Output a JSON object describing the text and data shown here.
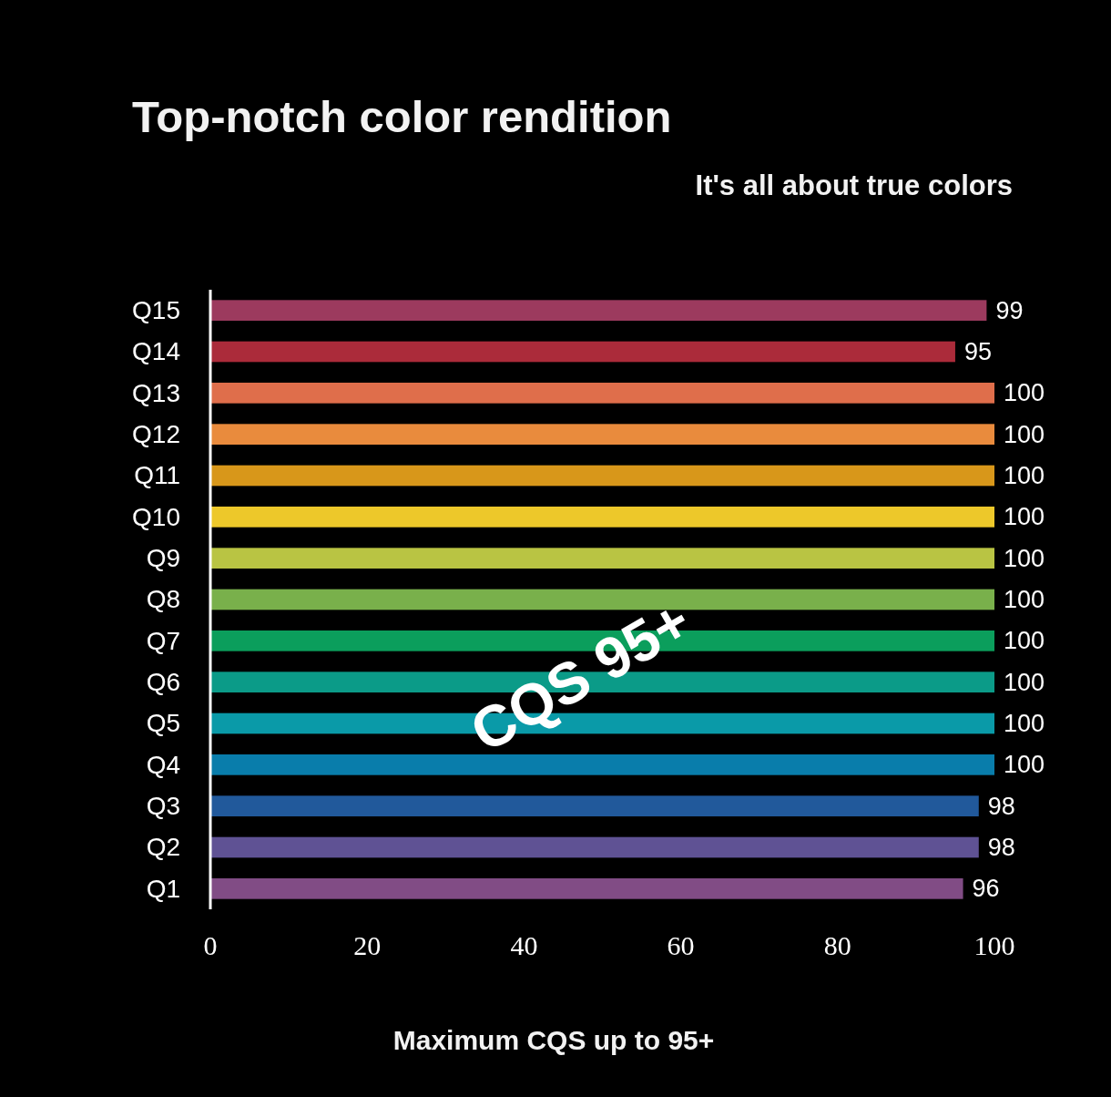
{
  "chart_data": {
    "type": "bar",
    "orientation": "horizontal",
    "title": "Top-notch color rendition",
    "subtitle": "It's all about true colors",
    "xlabel": "Maximum CQS up to 95+",
    "categories": [
      "Q15",
      "Q14",
      "Q13",
      "Q12",
      "Q11",
      "Q10",
      "Q9",
      "Q8",
      "Q7",
      "Q6",
      "Q5",
      "Q4",
      "Q3",
      "Q2",
      "Q1"
    ],
    "values": [
      99,
      95,
      100,
      100,
      100,
      100,
      100,
      100,
      100,
      100,
      100,
      100,
      98,
      98,
      96
    ],
    "colors": [
      "#9c3a5e",
      "#ab2b3a",
      "#df6e4b",
      "#e98b3d",
      "#d8971a",
      "#edc82a",
      "#b9c443",
      "#79b04b",
      "#0b9e5c",
      "#0b9b88",
      "#0a9aa8",
      "#097dab",
      "#21599b",
      "#5f5294",
      "#814c85"
    ],
    "xlim": [
      0,
      100
    ],
    "xticks": [
      0,
      20,
      40,
      60,
      80,
      100
    ],
    "data_labels": true,
    "annotations": [
      "CQS 95+"
    ]
  }
}
